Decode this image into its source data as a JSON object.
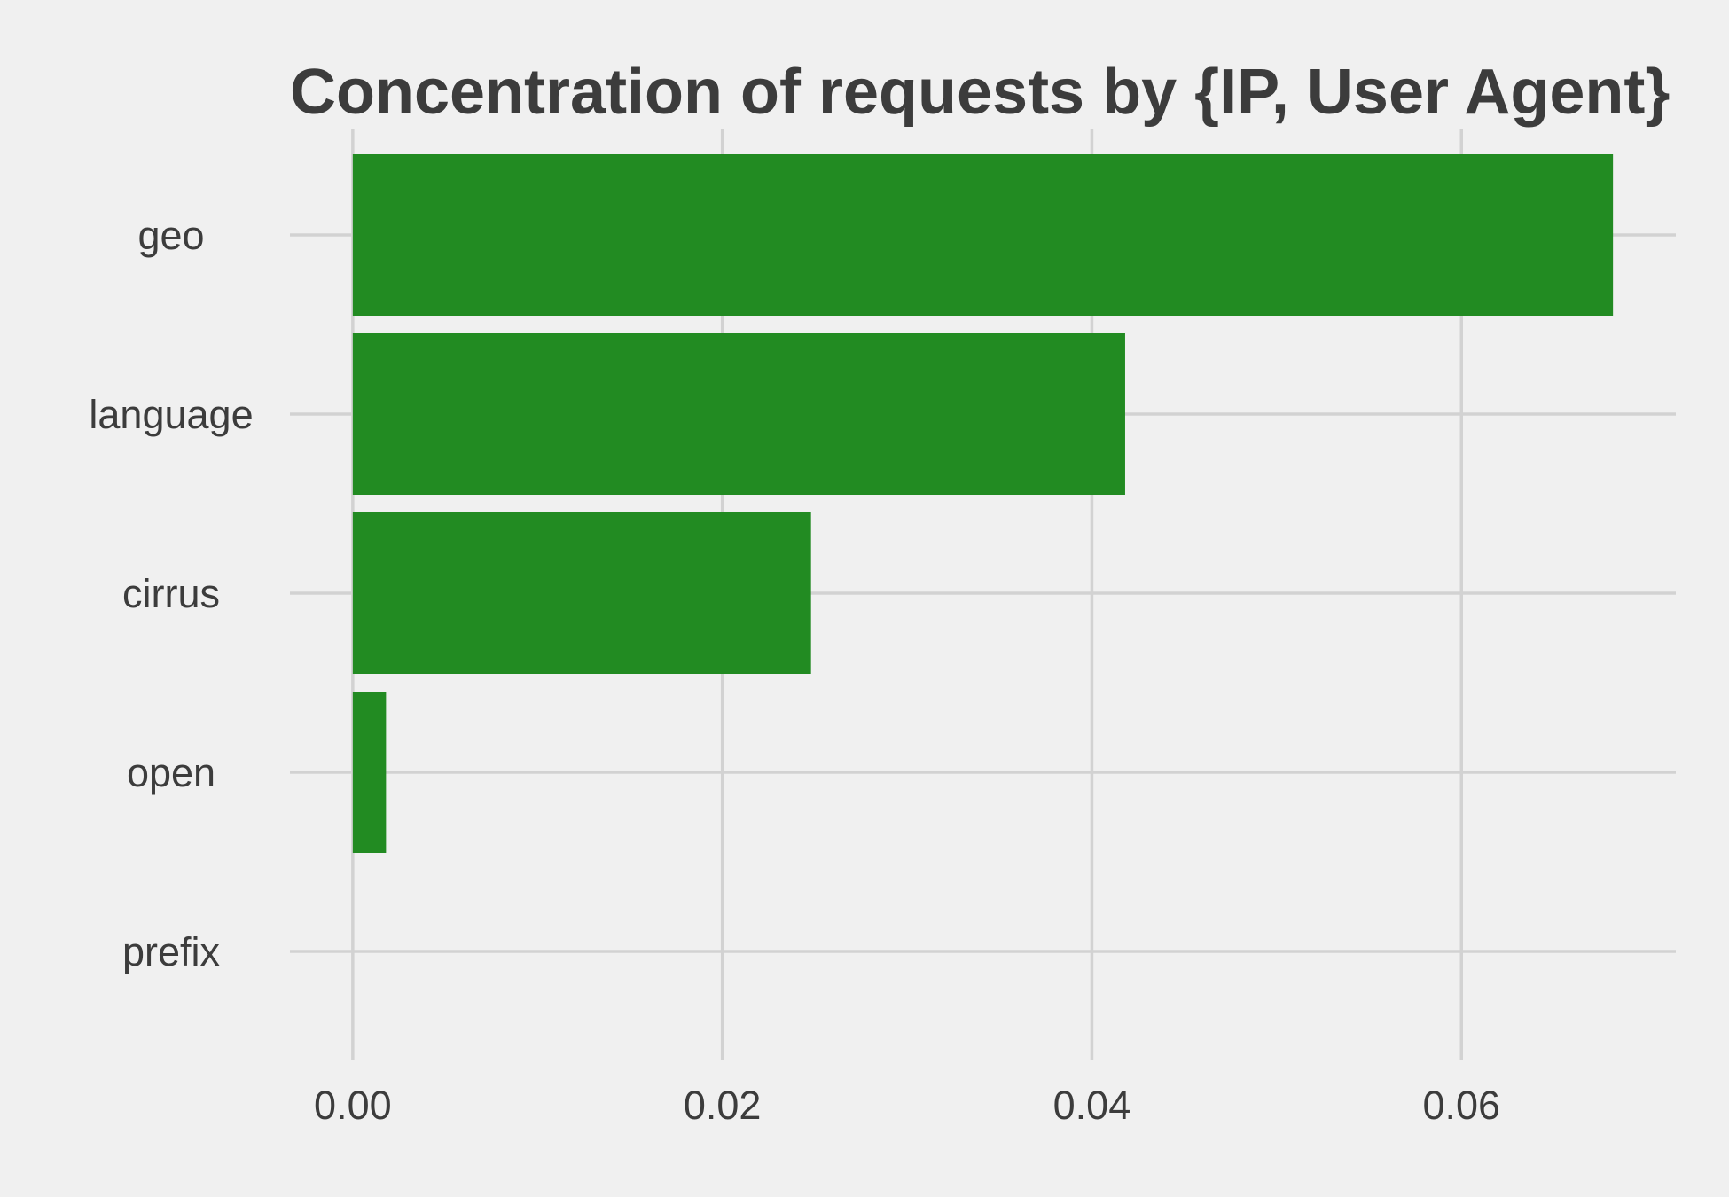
{
  "chart_data": {
    "type": "bar",
    "orientation": "horizontal",
    "title": "Concentration of requests by {IP, User Agent}",
    "xlabel": "",
    "ylabel": "",
    "categories": [
      "geo",
      "language",
      "cirrus",
      "open",
      "prefix"
    ],
    "values": [
      0.0682,
      0.0418,
      0.0248,
      0.0018,
      0.0
    ],
    "xlim": [
      -0.0034,
      0.0716
    ],
    "xticks": [
      0.0,
      0.02,
      0.04,
      0.06
    ],
    "xtick_labels": [
      "0.00",
      "0.02",
      "0.04",
      "0.06"
    ],
    "grid": true,
    "legend": "none",
    "colors": {
      "background": "#f0f0f0",
      "bar": "#228b22",
      "grid": "#d2d2d2",
      "text": "#3c3c3c"
    }
  }
}
